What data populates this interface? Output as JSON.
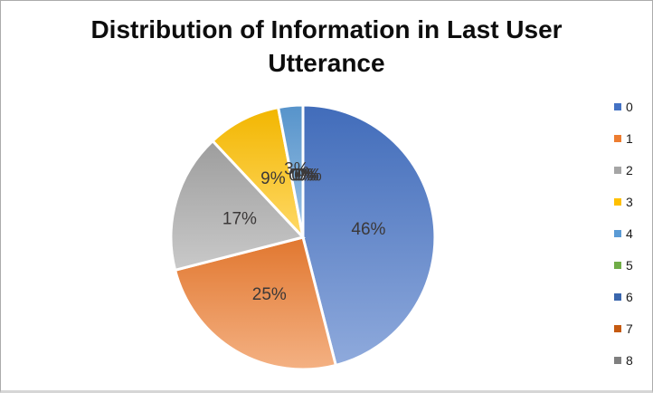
{
  "window": {
    "background": "#ffffff",
    "border_color": "#ababab",
    "bottom_border_color": "#d6d6d6"
  },
  "chart_data": {
    "type": "pie",
    "title": "Distribution of Information in Last User Utterance",
    "title_lines": [
      "Distribution of Information in Last User",
      "Utterance"
    ],
    "legend_position": "right",
    "categories": [
      "0",
      "1",
      "2",
      "3",
      "4",
      "5",
      "6",
      "7",
      "8"
    ],
    "values": [
      46,
      25,
      17,
      9,
      3,
      0,
      0,
      0,
      0
    ],
    "percent_labels": [
      "46%",
      "25%",
      "17%",
      "9%",
      "3%",
      "0%",
      "0%",
      "0%",
      "0%"
    ],
    "colors": [
      "#4472C4",
      "#ED7D31",
      "#A5A5A5",
      "#FFC000",
      "#5B9BD5",
      "#70AD47",
      "#3A66AD",
      "#C55A11",
      "#7F7F7F"
    ],
    "label_color": "#3B3838",
    "separator_color": "#FFFFFF",
    "start_angle_deg": 0,
    "direction": "clockwise",
    "gradient_fill": true
  }
}
